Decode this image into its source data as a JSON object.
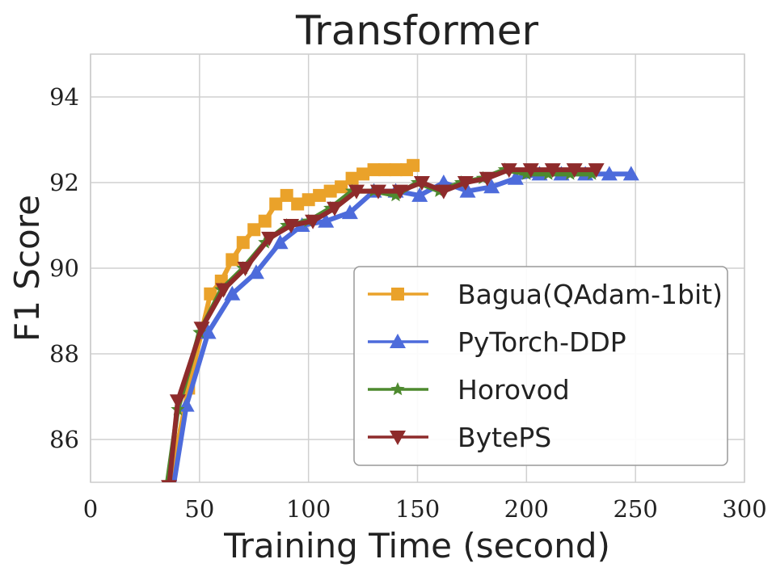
{
  "chart_data": {
    "type": "line",
    "title": "Transformer",
    "xlabel": "Training Time (second)",
    "ylabel": "F1 Score",
    "xlim": [
      0,
      300
    ],
    "ylim": [
      85,
      95
    ],
    "xticks": [
      0,
      50,
      100,
      150,
      200,
      250,
      300
    ],
    "yticks": [
      86,
      88,
      90,
      92,
      94
    ],
    "grid": true,
    "legend_position": "lower-right",
    "series": [
      {
        "name": "Bagua(QAdam-1bit)",
        "color": "#EAA22A",
        "marker": "square",
        "x": [
          36,
          45,
          55,
          60,
          65,
          70,
          75,
          80,
          85,
          90,
          95,
          100,
          105,
          110,
          115,
          120,
          125,
          130,
          135,
          140,
          145,
          148
        ],
        "y": [
          84.9,
          87.2,
          89.4,
          89.7,
          90.2,
          90.6,
          90.9,
          91.1,
          91.5,
          91.7,
          91.5,
          91.6,
          91.7,
          91.8,
          91.9,
          92.1,
          92.2,
          92.3,
          92.3,
          92.3,
          92.3,
          92.4
        ]
      },
      {
        "name": "PyTorch-DDP",
        "color": "#4D6BDB",
        "marker": "triangle-up",
        "x": [
          38,
          44,
          54,
          65,
          76,
          87,
          97,
          108,
          119,
          130,
          140,
          151,
          162,
          173,
          184,
          195,
          206,
          216,
          227,
          238,
          248
        ],
        "y": [
          84.9,
          86.8,
          88.5,
          89.4,
          89.9,
          90.6,
          91.0,
          91.1,
          91.3,
          91.8,
          91.8,
          91.7,
          92.0,
          91.8,
          91.9,
          92.1,
          92.2,
          92.2,
          92.2,
          92.2,
          92.2
        ]
      },
      {
        "name": "Horovod",
        "color": "#4E8A2F",
        "marker": "star",
        "x": [
          35,
          40,
          50,
          60,
          70,
          80,
          90,
          100,
          110,
          120,
          130,
          140,
          150,
          160,
          170,
          180,
          190,
          200,
          210,
          220,
          230
        ],
        "y": [
          84.9,
          86.7,
          88.5,
          89.5,
          90.0,
          90.6,
          91.0,
          91.1,
          91.4,
          91.8,
          91.8,
          91.7,
          92.0,
          91.8,
          92.0,
          92.1,
          92.3,
          92.2,
          92.2,
          92.2,
          92.2
        ]
      },
      {
        "name": "BytePS",
        "color": "#8E2B2B",
        "marker": "triangle-down",
        "x": [
          36,
          40,
          51,
          61,
          71,
          82,
          92,
          102,
          112,
          122,
          132,
          142,
          152,
          162,
          172,
          182,
          192,
          202,
          212,
          222,
          232
        ],
        "y": [
          84.9,
          86.9,
          88.6,
          89.5,
          90.0,
          90.7,
          91.0,
          91.1,
          91.4,
          91.8,
          91.8,
          91.8,
          92.0,
          91.8,
          92.0,
          92.1,
          92.3,
          92.3,
          92.3,
          92.3,
          92.3
        ]
      }
    ]
  }
}
